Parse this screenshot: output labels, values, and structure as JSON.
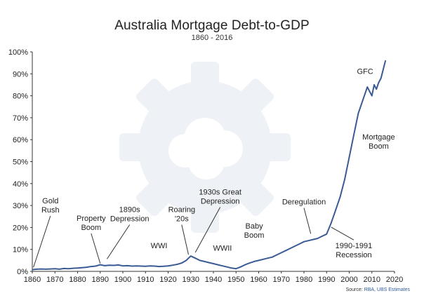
{
  "chart_data": {
    "type": "line",
    "title": "Australia Mortgage Debt-to-GDP",
    "subtitle": "1860 - 2016",
    "xlabel": "",
    "ylabel": "",
    "xlim": [
      1860,
      2020
    ],
    "ylim": [
      0,
      100
    ],
    "x_ticks": [
      "1860",
      "1870",
      "1880",
      "1890",
      "1900",
      "1910",
      "1920",
      "1930",
      "1940",
      "1950",
      "1960",
      "1970",
      "1980",
      "1990",
      "2000",
      "2010",
      "2020"
    ],
    "y_ticks": [
      "0%",
      "10%",
      "20%",
      "30%",
      "40%",
      "50%",
      "60%",
      "70%",
      "80%",
      "90%",
      "100%"
    ],
    "grid": false,
    "line_color": "#3a5b93",
    "series": [
      {
        "x": [
          1860,
          1862,
          1864,
          1866,
          1868,
          1870,
          1872,
          1874,
          1876,
          1878,
          1880,
          1882,
          1884,
          1886,
          1888,
          1890,
          1892,
          1894,
          1896,
          1898,
          1900,
          1902,
          1904,
          1906,
          1908,
          1910,
          1912,
          1914,
          1916,
          1918,
          1920,
          1922,
          1924,
          1926,
          1928,
          1929,
          1930,
          1931,
          1932,
          1934,
          1936,
          1938,
          1940,
          1942,
          1944,
          1946,
          1948,
          1950,
          1952,
          1954,
          1956,
          1958,
          1960,
          1962,
          1964,
          1966,
          1968,
          1970,
          1972,
          1974,
          1976,
          1978,
          1980,
          1982,
          1984,
          1986,
          1988,
          1990,
          1992,
          1994,
          1996,
          1998,
          2000,
          2002,
          2004,
          2006,
          2008,
          2009,
          2010,
          2011,
          2012,
          2013,
          2014,
          2015,
          2016
        ],
        "values": [
          0.8,
          1.0,
          1.1,
          1.0,
          1.1,
          1.2,
          1.0,
          1.3,
          1.2,
          1.4,
          1.5,
          1.7,
          1.9,
          2.2,
          2.4,
          3.0,
          2.6,
          2.8,
          2.7,
          2.9,
          2.5,
          2.6,
          2.4,
          2.5,
          2.4,
          2.3,
          2.5,
          2.4,
          2.2,
          2.3,
          2.5,
          2.8,
          3.2,
          3.8,
          5.0,
          6.0,
          7.0,
          6.5,
          6.0,
          5.0,
          4.5,
          4.0,
          3.5,
          3.0,
          2.5,
          2.0,
          1.5,
          1.2,
          2.0,
          3.0,
          3.8,
          4.5,
          5.0,
          5.5,
          6.0,
          6.5,
          7.5,
          8.5,
          9.5,
          10.5,
          11.5,
          12.5,
          13.5,
          14.0,
          14.5,
          15.0,
          16.0,
          17.0,
          22.0,
          28.0,
          34.0,
          42.0,
          52.0,
          62.0,
          72.0,
          78.0,
          84.0,
          82.0,
          80.0,
          85.0,
          83.0,
          86.0,
          88.0,
          92.0,
          96.0
        ]
      }
    ],
    "annotations": [
      {
        "lines": [
          "Gold",
          "Rush"
        ],
        "x": 1860.5,
        "y": 1.2,
        "tx": 1868,
        "ty": 31
      },
      {
        "lines": [
          "Property",
          "Boom"
        ],
        "x": 1890,
        "y": 3.0,
        "tx": 1886,
        "ty": 23
      },
      {
        "lines": [
          "1890s",
          "Depression"
        ],
        "x": 1893,
        "y": 5.0,
        "tx": 1903,
        "ty": 27
      },
      {
        "lines": [
          "WWI"
        ],
        "x": null,
        "y": null,
        "tx": 1916,
        "ty": 10.5
      },
      {
        "lines": [
          "Roaring",
          "'20s"
        ],
        "x": 1929,
        "y": 7.0,
        "tx": 1926,
        "ty": 27
      },
      {
        "lines": [
          "1930s Great",
          "Depression"
        ],
        "x": 1932,
        "y": 8.0,
        "tx": 1943,
        "ty": 35
      },
      {
        "lines": [
          "WWII"
        ],
        "x": null,
        "y": null,
        "tx": 1944,
        "ty": 9.5
      },
      {
        "lines": [
          "Baby",
          "Boom"
        ],
        "x": null,
        "y": null,
        "tx": 1958,
        "ty": 19.5
      },
      {
        "lines": [
          "Deregulation"
        ],
        "x": 1983,
        "y": 16.5,
        "tx": 1980,
        "ty": 30.5
      },
      {
        "lines": [
          "1990-1991",
          "Recession"
        ],
        "x": 1992,
        "y": 19.5,
        "tx": 2002,
        "ty": 10.5
      },
      {
        "lines": [
          "GFC"
        ],
        "x": null,
        "y": null,
        "tx": 2007,
        "ty": 90
      },
      {
        "lines": [
          "Mortgage",
          "Boom"
        ],
        "x": null,
        "y": null,
        "tx": 2013,
        "ty": 60
      }
    ]
  },
  "source": {
    "prefix": "Source: ",
    "highlight": "RBA, UBS Estimates"
  }
}
